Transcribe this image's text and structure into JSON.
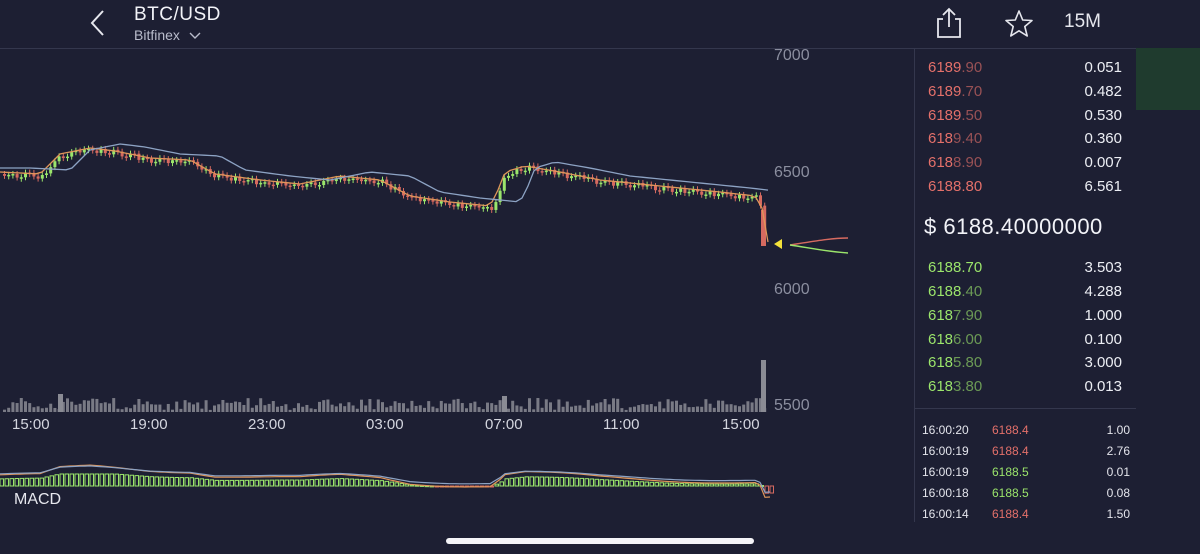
{
  "header": {
    "pair": "BTC/USD",
    "exchange": "Bitfinex",
    "interval": "15M"
  },
  "chart": {
    "price_ticks": [
      "7000",
      "6500",
      "6000",
      "5500"
    ],
    "time_ticks": [
      "15:00",
      "19:00",
      "23:00",
      "03:00",
      "07:00",
      "11:00",
      "15:00"
    ],
    "indicator_label": "MACD",
    "colors": {
      "up": "#9be56b",
      "down": "#d66a60",
      "volume": "#8a8b94",
      "ma_fast": "#e0965a",
      "ma_slow": "#8da3c4"
    }
  },
  "orderbook": {
    "asks": [
      {
        "price_bright": "6189",
        "price_dim": ".90",
        "qty": "0.051"
      },
      {
        "price_bright": "6189",
        "price_dim": ".70",
        "qty": "0.482"
      },
      {
        "price_bright": "6189",
        "price_dim": ".50",
        "qty": "0.530"
      },
      {
        "price_bright": "618",
        "price_dim": "9.40",
        "qty": "0.360"
      },
      {
        "price_bright": "618",
        "price_dim": "8.90",
        "qty": "0.007"
      },
      {
        "price_bright": "6188.80",
        "price_dim": "",
        "qty": "6.561"
      }
    ],
    "last_price": "$ 6188.40000000",
    "bids": [
      {
        "price_bright": "6188.70",
        "price_dim": "",
        "qty": "3.503"
      },
      {
        "price_bright": "6188",
        "price_dim": ".40",
        "qty": "4.288"
      },
      {
        "price_bright": "618",
        "price_dim": "7.90",
        "qty": "1.000"
      },
      {
        "price_bright": "618",
        "price_dim": "6.00",
        "qty": "0.100"
      },
      {
        "price_bright": "618",
        "price_dim": "5.80",
        "qty": "3.000"
      },
      {
        "price_bright": "618",
        "price_dim": "3.80",
        "qty": "0.013"
      }
    ]
  },
  "trades": [
    {
      "time": "16:00:20",
      "price": "6188.4",
      "qty": "1.00",
      "side": "sell"
    },
    {
      "time": "16:00:19",
      "price": "6188.4",
      "qty": "2.76",
      "side": "sell"
    },
    {
      "time": "16:00:19",
      "price": "6188.5",
      "qty": "0.01",
      "side": "buy"
    },
    {
      "time": "16:00:18",
      "price": "6188.5",
      "qty": "0.08",
      "side": "buy"
    },
    {
      "time": "16:00:14",
      "price": "6188.4",
      "qty": "1.50",
      "side": "sell"
    }
  ],
  "icons": {
    "back": "chevron-left-icon",
    "share": "share-icon",
    "favorite": "star-icon",
    "exchange_dropdown": "chevron-down-icon"
  }
}
